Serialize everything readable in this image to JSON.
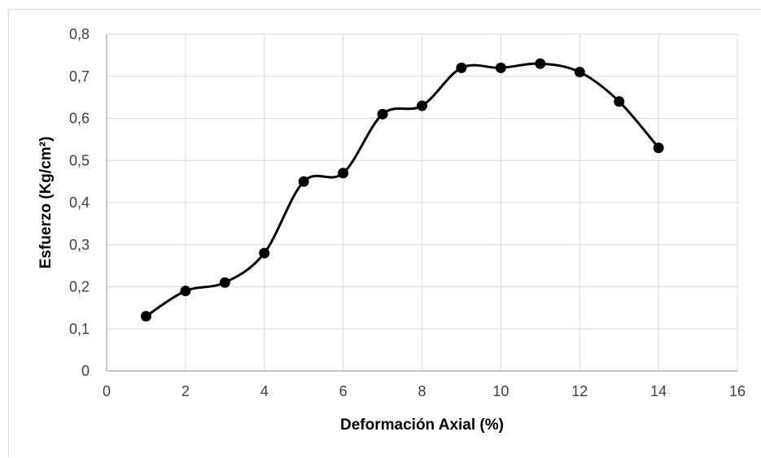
{
  "chart_data": {
    "type": "line",
    "title": "",
    "xlabel": "Deformación Axial (%)",
    "ylabel": "Esfuerzo (Kg/cm²)",
    "xlim": [
      0,
      16
    ],
    "ylim": [
      0,
      0.8
    ],
    "x_ticks": [
      0,
      2,
      4,
      6,
      8,
      10,
      12,
      14,
      16
    ],
    "y_ticks": [
      0,
      0.1,
      0.2,
      0.3,
      0.4,
      0.5,
      0.6,
      0.7,
      0.8
    ],
    "x_tick_labels": [
      "0",
      "2",
      "4",
      "6",
      "8",
      "10",
      "12",
      "14",
      "16"
    ],
    "y_tick_labels": [
      "0",
      "0,1",
      "0,2",
      "0,3",
      "0,4",
      "0,5",
      "0,6",
      "0,7",
      "0,8"
    ],
    "grid": true,
    "smoothed": true,
    "marker": "circle",
    "line_color": "#000000",
    "grid_color": "#d9d9d9",
    "series": [
      {
        "x": [
          1,
          2,
          3,
          4,
          5,
          6,
          7,
          8,
          9,
          10,
          11,
          12,
          13,
          14
        ],
        "y": [
          0.13,
          0.19,
          0.21,
          0.28,
          0.45,
          0.47,
          0.61,
          0.63,
          0.72,
          0.72,
          0.73,
          0.71,
          0.64,
          0.53
        ]
      }
    ]
  }
}
